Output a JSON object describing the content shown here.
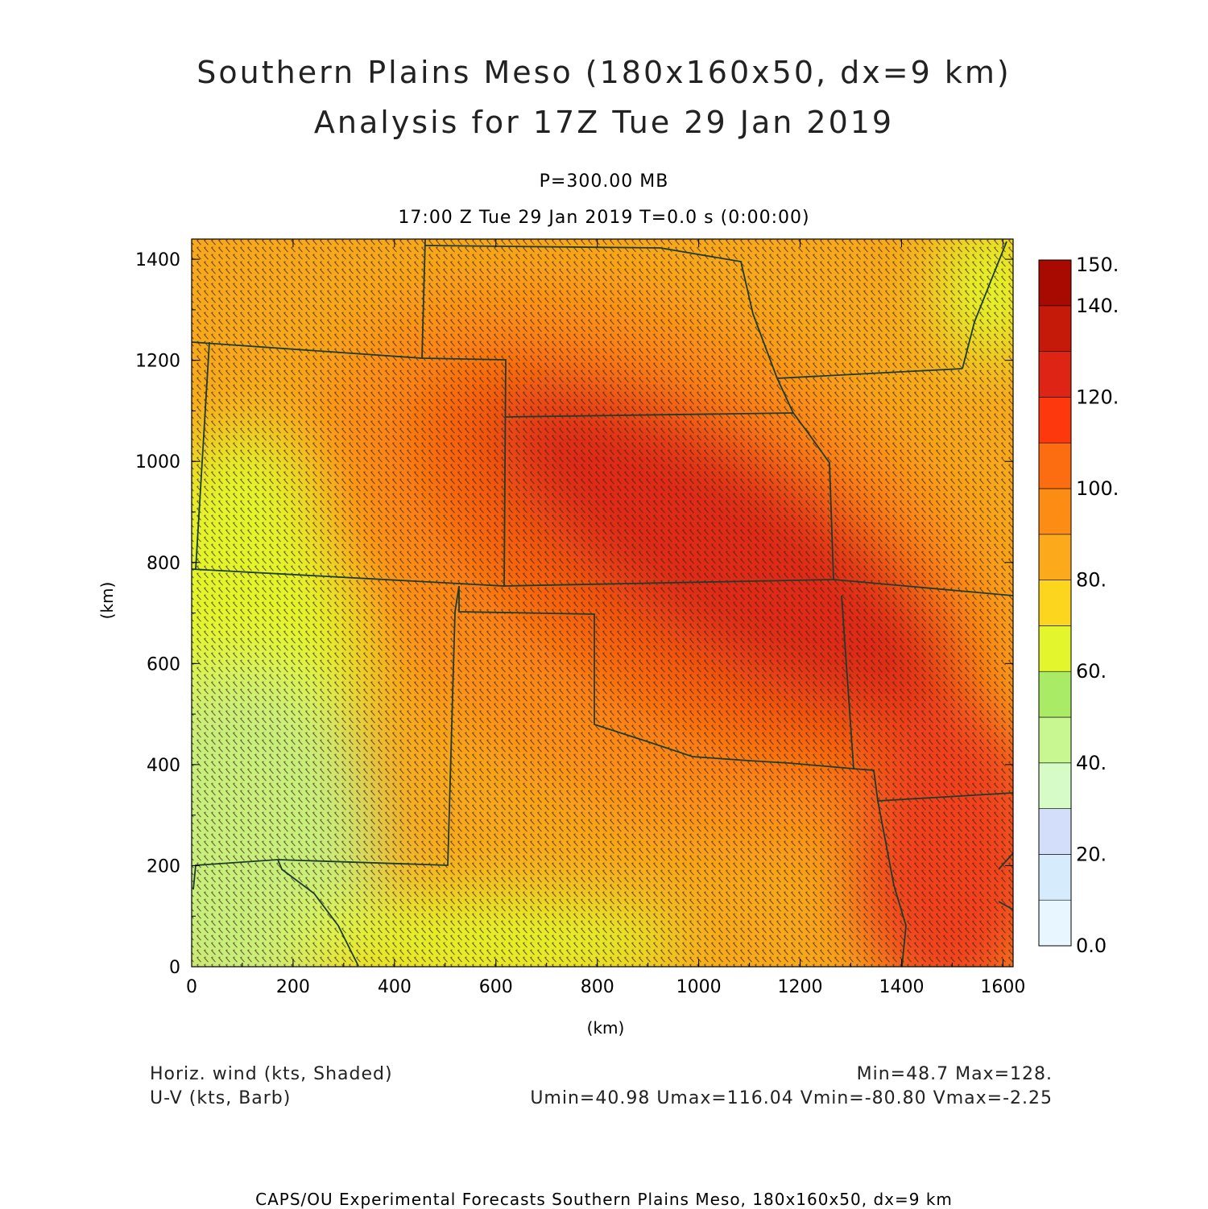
{
  "header": {
    "title_line1": "Southern Plains Meso (180x160x50, dx=9 km)",
    "title_line2": "Analysis for 17Z Tue 29 Jan 2019",
    "level": "P=300.00 MB",
    "time_line": "17:00 Z Tue 29 Jan 2019    T=0.0 s (0:00:00)"
  },
  "axes": {
    "x_label": "(km)",
    "y_label": "(km)",
    "x_ticks": [
      "0",
      "200",
      "400",
      "600",
      "800",
      "1000",
      "1200",
      "1400",
      "1600"
    ],
    "y_ticks": [
      "0",
      "200",
      "400",
      "600",
      "800",
      "1000",
      "1200",
      "1400"
    ],
    "x_range_km": [
      0,
      1620
    ],
    "y_range_km": [
      0,
      1440
    ]
  },
  "colorbar": {
    "labels": [
      "0.0",
      "20.",
      "40.",
      "60.",
      "80.",
      "100.",
      "120.",
      "140.",
      "150."
    ],
    "colors": [
      "#e8f6ff",
      "#d6ecfc",
      "#d3defa",
      "#d6fbc6",
      "#c8f792",
      "#aaeb66",
      "#e3f52c",
      "#fcd61e",
      "#fcaa1c",
      "#fc8c14",
      "#fc6c10",
      "#fc380c",
      "#de2414",
      "#c51a0a",
      "#a80a02"
    ]
  },
  "field_colors": {
    "low": "#c8ee7c",
    "mid": "#f7c21e",
    "high": "#f77812",
    "core": "#d52b18",
    "boundary": "#1e3c2c",
    "barb": "#3a2414"
  },
  "footer": {
    "field1": "Horiz. wind (kts, Shaded)",
    "field2": "U-V (kts, Barb)",
    "stats1": "Min=48.7 Max=128.",
    "stats2": "Umin=40.98 Umax=116.04 Vmin=-80.80 Vmax=-2.25",
    "credit": "CAPS/OU Experimental Forecasts  Southern Plains Meso, 180x160x50, dx=9 km"
  }
}
